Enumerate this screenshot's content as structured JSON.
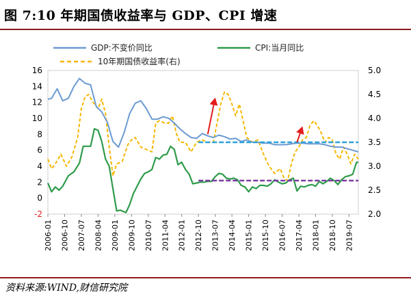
{
  "title": "图 7:10 年期国债收益率与 GDP、CPI 增速",
  "source": "资料来源:WIND,财信研究院",
  "colors": {
    "gdp": "#6b9ad2",
    "cpi": "#2e9b4a",
    "bond": "#f6b700",
    "ref_high": "#2aa1d9",
    "ref_low": "#7a3da0",
    "arrow": "#e31b1b",
    "rule": "#8b1a1a"
  },
  "chart_data": {
    "type": "line",
    "legend": {
      "gdp": "GDP:不变价同比",
      "cpi": "CPI:当月同比",
      "bond": "10年期国债收益率(右)"
    },
    "legend_position": "top",
    "left_axis": {
      "min": -2,
      "max": 16,
      "ticks": [
        -2,
        0,
        2,
        4,
        6,
        8,
        10,
        12,
        14,
        16
      ]
    },
    "right_axis": {
      "min": 2.0,
      "max": 5.0,
      "ticks": [
        "2.0",
        "2.5",
        "3.0",
        "3.5",
        "4.0",
        "4.5",
        "5.0"
      ]
    },
    "x_range": [
      "2006-01",
      "2019-12"
    ],
    "x_ticks": [
      "2006-01",
      "2006-10",
      "2007-07",
      "2008-04",
      "2009-01",
      "2009-10",
      "2010-07",
      "2011-04",
      "2012-01",
      "2012-10",
      "2013-07",
      "2014-04",
      "2015-01",
      "2015-10",
      "2016-07",
      "2017-04",
      "2018-01",
      "2018-10",
      "2019-07"
    ],
    "series": [
      {
        "key": "gdp",
        "name": "GDP:不变价同比",
        "axis": "left",
        "style": "solid",
        "points": [
          [
            "2006-01",
            12.4
          ],
          [
            "2006-03",
            12.5
          ],
          [
            "2006-06",
            13.7
          ],
          [
            "2006-09",
            12.2
          ],
          [
            "2006-12",
            12.5
          ],
          [
            "2007-03",
            14.0
          ],
          [
            "2007-06",
            15.0
          ],
          [
            "2007-09",
            14.4
          ],
          [
            "2007-12",
            14.2
          ],
          [
            "2008-03",
            11.5
          ],
          [
            "2008-06",
            10.8
          ],
          [
            "2008-09",
            9.5
          ],
          [
            "2008-12",
            7.1
          ],
          [
            "2009-03",
            6.4
          ],
          [
            "2009-06",
            8.2
          ],
          [
            "2009-09",
            10.6
          ],
          [
            "2009-12",
            11.9
          ],
          [
            "2010-03",
            12.2
          ],
          [
            "2010-06",
            11.2
          ],
          [
            "2010-09",
            9.9
          ],
          [
            "2010-12",
            9.9
          ],
          [
            "2011-03",
            10.2
          ],
          [
            "2011-06",
            10.0
          ],
          [
            "2011-09",
            9.4
          ],
          [
            "2011-12",
            8.7
          ],
          [
            "2012-03",
            8.1
          ],
          [
            "2012-06",
            7.6
          ],
          [
            "2012-09",
            7.5
          ],
          [
            "2012-12",
            8.1
          ],
          [
            "2013-03",
            7.8
          ],
          [
            "2013-06",
            7.6
          ],
          [
            "2013-09",
            7.9
          ],
          [
            "2013-12",
            7.7
          ],
          [
            "2014-03",
            7.4
          ],
          [
            "2014-06",
            7.5
          ],
          [
            "2014-09",
            7.1
          ],
          [
            "2014-12",
            7.3
          ],
          [
            "2015-03",
            7.0
          ],
          [
            "2015-06",
            7.0
          ],
          [
            "2015-09",
            6.9
          ],
          [
            "2015-12",
            6.9
          ],
          [
            "2016-03",
            6.7
          ],
          [
            "2016-06",
            6.7
          ],
          [
            "2016-09",
            6.7
          ],
          [
            "2016-12",
            6.8
          ],
          [
            "2017-03",
            6.9
          ],
          [
            "2017-06",
            6.9
          ],
          [
            "2017-09",
            6.8
          ],
          [
            "2017-12",
            6.8
          ],
          [
            "2018-03",
            6.8
          ],
          [
            "2018-06",
            6.7
          ],
          [
            "2018-09",
            6.5
          ],
          [
            "2018-12",
            6.4
          ],
          [
            "2019-03",
            6.4
          ],
          [
            "2019-06",
            6.2
          ],
          [
            "2019-09",
            6.0
          ],
          [
            "2019-12",
            5.8
          ]
        ]
      },
      {
        "key": "cpi",
        "name": "CPI:当月同比",
        "axis": "left",
        "style": "solid",
        "points": [
          [
            "2006-01",
            1.9
          ],
          [
            "2006-03",
            0.8
          ],
          [
            "2006-05",
            1.4
          ],
          [
            "2006-07",
            1.0
          ],
          [
            "2006-09",
            1.5
          ],
          [
            "2006-12",
            2.8
          ],
          [
            "2007-03",
            3.3
          ],
          [
            "2007-06",
            4.4
          ],
          [
            "2007-08",
            6.5
          ],
          [
            "2007-10",
            6.5
          ],
          [
            "2007-12",
            6.5
          ],
          [
            "2008-02",
            8.7
          ],
          [
            "2008-04",
            8.5
          ],
          [
            "2008-06",
            7.1
          ],
          [
            "2008-08",
            4.9
          ],
          [
            "2008-10",
            4.0
          ],
          [
            "2008-12",
            1.2
          ],
          [
            "2009-02",
            -1.6
          ],
          [
            "2009-04",
            -1.5
          ],
          [
            "2009-07",
            -1.8
          ],
          [
            "2009-09",
            -0.8
          ],
          [
            "2009-11",
            0.6
          ],
          [
            "2010-01",
            1.5
          ],
          [
            "2010-03",
            2.4
          ],
          [
            "2010-05",
            3.1
          ],
          [
            "2010-07",
            3.3
          ],
          [
            "2010-09",
            3.6
          ],
          [
            "2010-11",
            5.1
          ],
          [
            "2011-01",
            4.9
          ],
          [
            "2011-03",
            5.4
          ],
          [
            "2011-05",
            5.5
          ],
          [
            "2011-07",
            6.5
          ],
          [
            "2011-09",
            6.1
          ],
          [
            "2011-11",
            4.2
          ],
          [
            "2012-01",
            4.5
          ],
          [
            "2012-03",
            3.6
          ],
          [
            "2012-05",
            3.0
          ],
          [
            "2012-07",
            1.8
          ],
          [
            "2012-09",
            1.9
          ],
          [
            "2012-11",
            2.0
          ],
          [
            "2013-01",
            2.0
          ],
          [
            "2013-03",
            2.1
          ],
          [
            "2013-05",
            2.1
          ],
          [
            "2013-07",
            2.7
          ],
          [
            "2013-09",
            3.1
          ],
          [
            "2013-11",
            3.0
          ],
          [
            "2014-01",
            2.5
          ],
          [
            "2014-03",
            2.4
          ],
          [
            "2014-05",
            2.5
          ],
          [
            "2014-07",
            2.3
          ],
          [
            "2014-09",
            1.6
          ],
          [
            "2014-11",
            1.4
          ],
          [
            "2015-01",
            0.8
          ],
          [
            "2015-03",
            1.4
          ],
          [
            "2015-05",
            1.2
          ],
          [
            "2015-07",
            1.6
          ],
          [
            "2015-09",
            1.6
          ],
          [
            "2015-11",
            1.5
          ],
          [
            "2016-01",
            1.8
          ],
          [
            "2016-03",
            2.3
          ],
          [
            "2016-05",
            2.0
          ],
          [
            "2016-07",
            1.8
          ],
          [
            "2016-09",
            1.9
          ],
          [
            "2016-11",
            2.3
          ],
          [
            "2017-01",
            2.5
          ],
          [
            "2017-03",
            0.9
          ],
          [
            "2017-05",
            1.5
          ],
          [
            "2017-07",
            1.4
          ],
          [
            "2017-09",
            1.6
          ],
          [
            "2017-11",
            1.7
          ],
          [
            "2018-01",
            1.5
          ],
          [
            "2018-03",
            2.1
          ],
          [
            "2018-05",
            1.8
          ],
          [
            "2018-07",
            2.1
          ],
          [
            "2018-09",
            2.5
          ],
          [
            "2018-11",
            2.2
          ],
          [
            "2019-01",
            1.7
          ],
          [
            "2019-03",
            2.3
          ],
          [
            "2019-05",
            2.7
          ],
          [
            "2019-07",
            2.8
          ],
          [
            "2019-09",
            3.0
          ],
          [
            "2019-11",
            4.5
          ],
          [
            "2019-12",
            4.5
          ]
        ]
      },
      {
        "key": "bond",
        "name": "10年期国债收益率(右)",
        "axis": "right",
        "style": "dashed",
        "points": [
          [
            "2006-01",
            3.15
          ],
          [
            "2006-03",
            2.95
          ],
          [
            "2006-05",
            3.05
          ],
          [
            "2006-08",
            3.25
          ],
          [
            "2006-11",
            3.0
          ],
          [
            "2007-02",
            3.2
          ],
          [
            "2007-05",
            3.6
          ],
          [
            "2007-07",
            4.2
          ],
          [
            "2007-09",
            4.45
          ],
          [
            "2007-11",
            4.5
          ],
          [
            "2008-01",
            4.35
          ],
          [
            "2008-04",
            4.2
          ],
          [
            "2008-06",
            4.4
          ],
          [
            "2008-08",
            4.1
          ],
          [
            "2008-10",
            3.4
          ],
          [
            "2008-12",
            2.8
          ],
          [
            "2009-02",
            3.05
          ],
          [
            "2009-05",
            3.1
          ],
          [
            "2009-08",
            3.45
          ],
          [
            "2009-10",
            3.55
          ],
          [
            "2009-12",
            3.6
          ],
          [
            "2010-03",
            3.4
          ],
          [
            "2010-06",
            3.35
          ],
          [
            "2010-09",
            3.3
          ],
          [
            "2010-11",
            3.9
          ],
          [
            "2011-01",
            3.95
          ],
          [
            "2011-04",
            3.9
          ],
          [
            "2011-06",
            3.9
          ],
          [
            "2011-08",
            4.05
          ],
          [
            "2011-10",
            3.7
          ],
          [
            "2011-12",
            3.5
          ],
          [
            "2012-03",
            3.5
          ],
          [
            "2012-06",
            3.3
          ],
          [
            "2012-09",
            3.5
          ],
          [
            "2012-12",
            3.55
          ],
          [
            "2013-03",
            3.5
          ],
          [
            "2013-06",
            3.5
          ],
          [
            "2013-08",
            3.9
          ],
          [
            "2013-10",
            4.3
          ],
          [
            "2013-12",
            4.55
          ],
          [
            "2014-02",
            4.5
          ],
          [
            "2014-04",
            4.3
          ],
          [
            "2014-06",
            4.05
          ],
          [
            "2014-08",
            4.3
          ],
          [
            "2014-10",
            3.95
          ],
          [
            "2014-12",
            3.6
          ],
          [
            "2015-03",
            3.5
          ],
          [
            "2015-06",
            3.55
          ],
          [
            "2015-09",
            3.25
          ],
          [
            "2015-12",
            3.0
          ],
          [
            "2016-03",
            2.85
          ],
          [
            "2016-06",
            2.95
          ],
          [
            "2016-08",
            2.75
          ],
          [
            "2016-10",
            2.7
          ],
          [
            "2016-12",
            3.05
          ],
          [
            "2017-02",
            3.3
          ],
          [
            "2017-04",
            3.4
          ],
          [
            "2017-06",
            3.55
          ],
          [
            "2017-08",
            3.6
          ],
          [
            "2017-10",
            3.85
          ],
          [
            "2017-12",
            3.95
          ],
          [
            "2018-02",
            3.85
          ],
          [
            "2018-04",
            3.7
          ],
          [
            "2018-06",
            3.5
          ],
          [
            "2018-08",
            3.6
          ],
          [
            "2018-10",
            3.55
          ],
          [
            "2018-12",
            3.25
          ],
          [
            "2019-02",
            3.15
          ],
          [
            "2019-04",
            3.4
          ],
          [
            "2019-06",
            3.25
          ],
          [
            "2019-08",
            3.05
          ],
          [
            "2019-10",
            3.25
          ],
          [
            "2019-12",
            3.15
          ]
        ]
      }
    ],
    "reference_lines": [
      {
        "key": "ref_high",
        "axis": "left",
        "y": 7.0,
        "x_start": "2012-10",
        "x_end": "2019-12"
      },
      {
        "key": "ref_low",
        "axis": "left",
        "y": 2.2,
        "x_start": "2012-10",
        "x_end": "2019-12"
      }
    ],
    "arrows": [
      {
        "from": [
          "2013-03",
          8.0
        ],
        "to": [
          "2013-07",
          12.6
        ]
      },
      {
        "from": [
          "2017-03",
          7.0
        ],
        "to": [
          "2017-06",
          9.0
        ]
      }
    ]
  }
}
